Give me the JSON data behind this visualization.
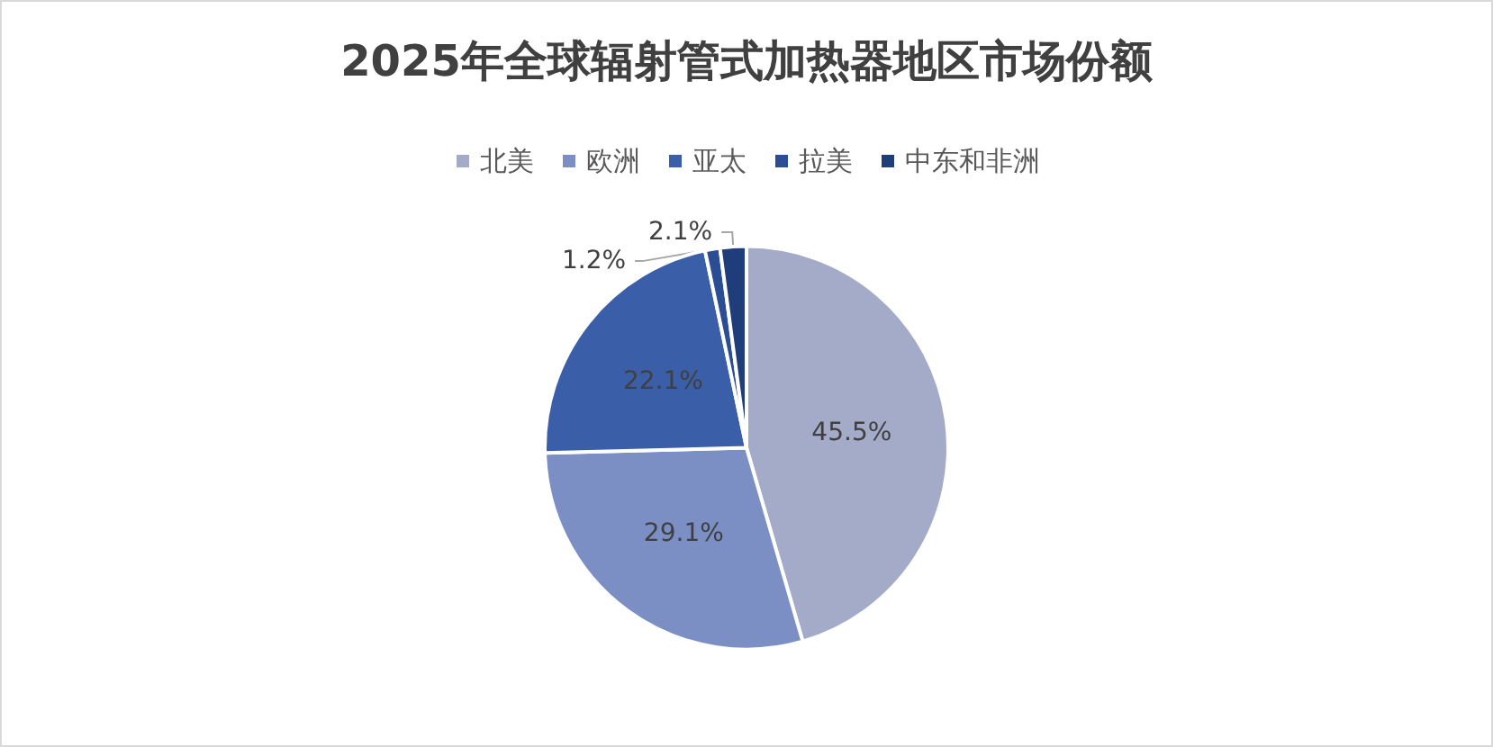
{
  "chart_data": {
    "type": "pie",
    "title": "2025年全球辐射管式加热器地区市场份额",
    "categories": [
      "北美",
      "欧洲",
      "亚太",
      "拉美",
      "中东和非洲"
    ],
    "values": [
      45.5,
      29.1,
      22.1,
      1.2,
      2.1
    ],
    "colors": [
      "#a3abc9",
      "#7c8fc4",
      "#3a5ea8",
      "#2a4d94",
      "#1f3d78"
    ],
    "value_labels": [
      "45.5%",
      "29.1%",
      "22.1%",
      "1.2%",
      "2.1%"
    ],
    "legend": "top"
  }
}
